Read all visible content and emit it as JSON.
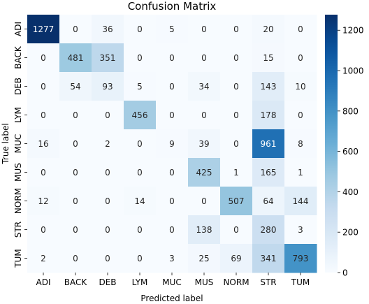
{
  "chart_data": {
    "type": "heatmap",
    "title": "Confusion Matrix",
    "xlabel": "Predicted label",
    "ylabel": "True label",
    "x_categories": [
      "ADI",
      "BACK",
      "DEB",
      "LYM",
      "MUC",
      "MUS",
      "NORM",
      "STR",
      "TUM"
    ],
    "y_categories": [
      "ADI",
      "BACK",
      "DEB",
      "LYM",
      "MUC",
      "MUS",
      "NORM",
      "STR",
      "TUM"
    ],
    "values": [
      [
        1277,
        0,
        36,
        0,
        5,
        0,
        0,
        20,
        0
      ],
      [
        0,
        481,
        351,
        0,
        0,
        0,
        0,
        15,
        0
      ],
      [
        0,
        54,
        93,
        5,
        0,
        34,
        0,
        143,
        10
      ],
      [
        0,
        0,
        0,
        456,
        0,
        0,
        0,
        178,
        0
      ],
      [
        16,
        0,
        2,
        0,
        9,
        39,
        0,
        961,
        8
      ],
      [
        0,
        0,
        0,
        0,
        0,
        425,
        1,
        165,
        1
      ],
      [
        12,
        0,
        0,
        14,
        0,
        0,
        507,
        64,
        144
      ],
      [
        0,
        0,
        0,
        0,
        0,
        138,
        0,
        280,
        3
      ],
      [
        2,
        0,
        0,
        0,
        3,
        25,
        69,
        341,
        793
      ]
    ],
    "colorbar": {
      "colormap": "Blues",
      "range": [
        0,
        1277
      ],
      "ticks": [
        0,
        200,
        400,
        600,
        800,
        1000,
        1200
      ]
    }
  }
}
